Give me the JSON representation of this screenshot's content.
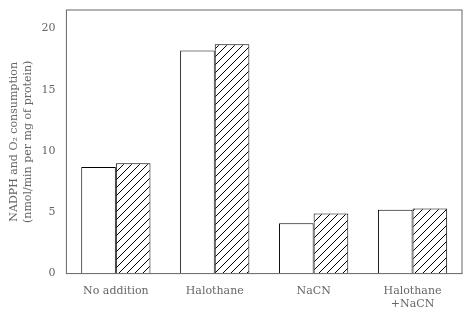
{
  "chart_data": {
    "type": "bar",
    "categories": [
      "No addition",
      "Halothane",
      "NaCN",
      "Halothane\n+NaCN"
    ],
    "series": [
      {
        "color": "#ffffff",
        "values": [
          8.7,
          18.2,
          4.1,
          5.2
        ]
      },
      {
        "color": "#ffffff",
        "values": [
          9.0,
          18.7,
          4.9,
          5.3
        ]
      }
    ],
    "ylabel": "NADPH and O₂ consumption\n(nmol/min per mg of protein)",
    "ylim": [
      0,
      21.5
    ],
    "yticks": [
      0,
      5,
      10,
      15,
      20
    ],
    "grid": false
  }
}
